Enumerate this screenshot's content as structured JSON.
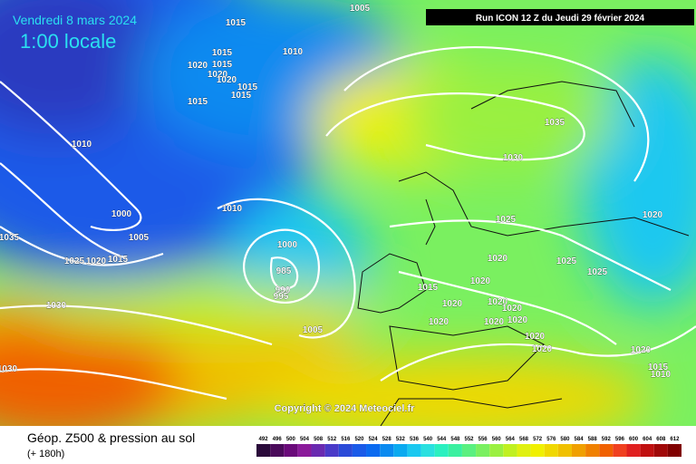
{
  "header": {
    "date": "Vendredi 8 mars 2024",
    "time": "1:00 locale",
    "run": "Run ICON 12 Z du Jeudi 29 février 2024"
  },
  "footer": {
    "title": "Géop. Z500 & pression au sol",
    "subtitle": "(+ 180h)",
    "copyright": "Copyright © 2024 Meteociel.fr"
  },
  "legend": {
    "values": [
      492,
      496,
      500,
      504,
      508,
      512,
      516,
      520,
      524,
      528,
      532,
      536,
      540,
      544,
      548,
      552,
      556,
      560,
      564,
      568,
      572,
      576,
      580,
      584,
      588,
      592,
      596,
      600,
      604,
      608,
      612
    ],
    "colors": [
      "#2a0a3a",
      "#4a0a5a",
      "#6a0a7a",
      "#8a1a9a",
      "#6a2ab0",
      "#4a3ac8",
      "#2a4ad8",
      "#1a5ae8",
      "#0a6af0",
      "#0a8af0",
      "#0aaaf0",
      "#1ac8f0",
      "#2ae0e0",
      "#2af0c0",
      "#3af0a0",
      "#5af080",
      "#7af060",
      "#9af040",
      "#c0f020",
      "#e0f010",
      "#f0f000",
      "#f0d800",
      "#f0c000",
      "#f0a000",
      "#f08000",
      "#f06000",
      "#f04020",
      "#e02020",
      "#c01010",
      "#a00808",
      "#800000"
    ]
  },
  "isobars": {
    "labels": [
      1015,
      1005,
      1010,
      1015,
      1015,
      1020,
      1020,
      1020,
      1015,
      1015,
      1015,
      1010,
      1035,
      1030,
      1000,
      1005,
      1010,
      1035,
      1025,
      1020,
      1015,
      1000,
      985,
      990,
      995,
      1030,
      1005,
      1025,
      1020,
      1025,
      1025,
      1020,
      1015,
      1020,
      1020,
      1020,
      1020,
      1020,
      1020,
      1020,
      1020,
      1020,
      1020,
      1015,
      1010,
      1030
    ]
  }
}
